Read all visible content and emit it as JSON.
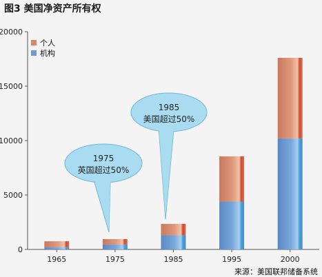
{
  "title": "图3 美国净资产所有权",
  "source": "来源：美国联邦储备系统",
  "colors": {
    "individual": "#d9876a",
    "institution": "#6b9bd0"
  },
  "chart_data": {
    "type": "bar",
    "stacked": true,
    "categories": [
      "1965",
      "1975",
      "1985",
      "1995",
      "2000"
    ],
    "series": [
      {
        "name": "机构",
        "values": [
          200,
          450,
          1300,
          4400,
          10200
        ]
      },
      {
        "name": "个人",
        "values": [
          550,
          500,
          1050,
          4150,
          7400
        ]
      }
    ],
    "ylim": [
      0,
      20000
    ],
    "yticks": [
      "0",
      "5000",
      "10000",
      "15000",
      "20000"
    ],
    "grid": false,
    "legend": "top-left",
    "annotations": [
      {
        "category": "1975",
        "line1": "1975",
        "line2": "英国超过50%"
      },
      {
        "category": "1985",
        "line1": "1985",
        "line2": "美国超过50%"
      }
    ]
  }
}
